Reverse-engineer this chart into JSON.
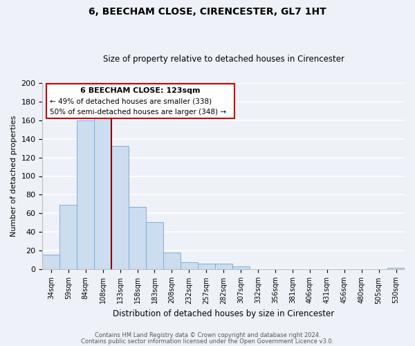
{
  "title": "6, BEECHAM CLOSE, CIRENCESTER, GL7 1HT",
  "subtitle": "Size of property relative to detached houses in Cirencester",
  "xlabel": "Distribution of detached houses by size in Cirencester",
  "ylabel": "Number of detached properties",
  "bar_color": "#ccddf0",
  "bar_edge_color": "#7aacda",
  "background_color": "#eef2f8",
  "grid_color": "#ffffff",
  "categories": [
    "34sqm",
    "59sqm",
    "84sqm",
    "108sqm",
    "133sqm",
    "158sqm",
    "183sqm",
    "208sqm",
    "232sqm",
    "257sqm",
    "282sqm",
    "307sqm",
    "332sqm",
    "356sqm",
    "381sqm",
    "406sqm",
    "431sqm",
    "456sqm",
    "480sqm",
    "505sqm",
    "530sqm"
  ],
  "values": [
    16,
    69,
    160,
    163,
    132,
    67,
    51,
    18,
    8,
    6,
    6,
    3,
    0,
    0,
    0,
    0,
    0,
    0,
    0,
    0,
    2
  ],
  "ylim": [
    0,
    200
  ],
  "yticks": [
    0,
    20,
    40,
    60,
    80,
    100,
    120,
    140,
    160,
    180,
    200
  ],
  "property_line_color": "#8b0000",
  "annotation_title": "6 BEECHAM CLOSE: 123sqm",
  "annotation_line1": "← 49% of detached houses are smaller (338)",
  "annotation_line2": "50% of semi-detached houses are larger (348) →",
  "annotation_box_color": "#ffffff",
  "annotation_border_color": "#cc0000",
  "footer1": "Contains HM Land Registry data © Crown copyright and database right 2024.",
  "footer2": "Contains public sector information licensed under the Open Government Licence v3.0."
}
